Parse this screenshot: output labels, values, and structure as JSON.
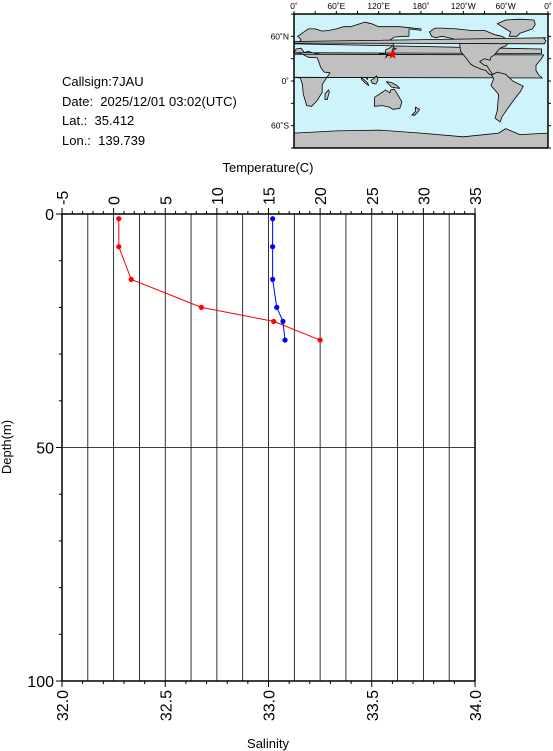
{
  "station": {
    "callsign": "Callsign:7JAU",
    "date": "Date:  2025/12/01 03:02(UTC)",
    "lat": "Lat.:  35.412",
    "lon": "Lon.:  139.739"
  },
  "map": {
    "top_labels": [
      "0˚",
      "60˚E",
      "120˚E",
      "180˚",
      "120˚W",
      "60˚W",
      "0˚"
    ],
    "left_labels": [
      "60˚N",
      "0˚",
      "60˚S"
    ],
    "ocean_color": "#cdf3fb",
    "land_color": "#c0c0c0",
    "marker": {
      "type": "star",
      "color": "#ff0000",
      "lat": 35.412,
      "lon": 139.739
    }
  },
  "chart_data": {
    "type": "line",
    "xlabel_top": "Temperature(C)",
    "xlabel_bottom": "Salinity",
    "ylabel": "Depth(m)",
    "temperature_axis": {
      "range": [
        -5,
        35
      ],
      "ticks": [
        "-5",
        "0",
        "5",
        "10",
        "15",
        "20",
        "25",
        "30",
        "35"
      ]
    },
    "salinity_axis": {
      "range": [
        32.0,
        34.0
      ],
      "ticks": [
        "32.0",
        "32.5",
        "33.0",
        "33.5",
        "34.0"
      ]
    },
    "depth_axis": {
      "range": [
        0,
        100
      ],
      "inverted": true,
      "ticks": [
        "0",
        "50",
        "100"
      ]
    },
    "grid": true,
    "series": [
      {
        "axis": "temperature",
        "color": "#ff0000",
        "points": [
          {
            "depth": 1,
            "value": 0.5
          },
          {
            "depth": 7,
            "value": 0.5
          },
          {
            "depth": 14,
            "value": 1.7
          },
          {
            "depth": 20,
            "value": 8.5
          },
          {
            "depth": 23,
            "value": 15.5
          },
          {
            "depth": 27,
            "value": 20.0
          }
        ]
      },
      {
        "axis": "salinity",
        "color": "#0000ff",
        "points": [
          {
            "depth": 1,
            "value": 33.02
          },
          {
            "depth": 7,
            "value": 33.02
          },
          {
            "depth": 14,
            "value": 33.02
          },
          {
            "depth": 20,
            "value": 33.04
          },
          {
            "depth": 23,
            "value": 33.07
          },
          {
            "depth": 27,
            "value": 33.08
          }
        ]
      }
    ]
  }
}
